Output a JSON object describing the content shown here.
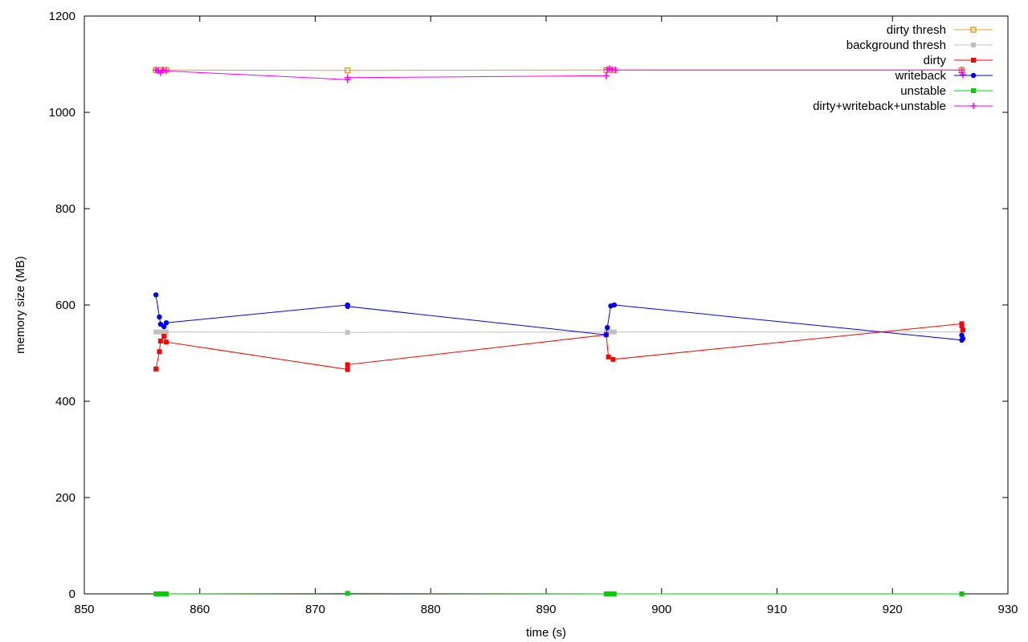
{
  "chart_data": {
    "type": "line",
    "xlabel": "time (s)",
    "ylabel": "memory size (MB)",
    "xlim": [
      850,
      930
    ],
    "ylim": [
      0,
      1200
    ],
    "xticks": [
      "850",
      "860",
      "870",
      "880",
      "890",
      "900",
      "910",
      "920",
      "930"
    ],
    "yticks": [
      "0",
      "200",
      "400",
      "600",
      "800",
      "1000",
      "1200"
    ],
    "grid": false,
    "legend_position": "top-right",
    "series": [
      {
        "name": "dirty thresh",
        "color": "#e9a21f",
        "marker": "square-open",
        "points": [
          [
            856.2,
            1088
          ],
          [
            856.5,
            1088
          ],
          [
            856.9,
            1088
          ],
          [
            857.1,
            1088
          ],
          [
            872.8,
            1087
          ],
          [
            895.2,
            1088
          ],
          [
            895.6,
            1088
          ],
          [
            895.9,
            1088
          ],
          [
            926.0,
            1088
          ]
        ]
      },
      {
        "name": "background thresh",
        "color": "#c0c0c0",
        "marker": "square",
        "points": [
          [
            856.2,
            544
          ],
          [
            856.5,
            544
          ],
          [
            856.9,
            544
          ],
          [
            857.1,
            544
          ],
          [
            872.8,
            543
          ],
          [
            895.2,
            544
          ],
          [
            895.6,
            544
          ],
          [
            895.9,
            544
          ],
          [
            926.0,
            544
          ]
        ]
      },
      {
        "name": "dirty",
        "color": "#ff0000",
        "marker": "square",
        "points": [
          [
            856.2,
            467
          ],
          [
            856.5,
            503
          ],
          [
            856.6,
            525
          ],
          [
            856.9,
            535
          ],
          [
            857.1,
            523
          ],
          [
            872.8,
            466
          ],
          [
            872.8,
            476
          ],
          [
            895.2,
            538
          ],
          [
            895.4,
            492
          ],
          [
            895.8,
            487
          ],
          [
            926.0,
            561
          ],
          [
            926.0,
            557
          ],
          [
            926.1,
            548
          ]
        ]
      },
      {
        "name": "writeback",
        "color": "#0000ff",
        "marker": "dot",
        "points": [
          [
            856.2,
            621
          ],
          [
            856.5,
            575
          ],
          [
            856.6,
            560
          ],
          [
            856.9,
            555
          ],
          [
            857.1,
            563
          ],
          [
            872.8,
            600
          ],
          [
            872.8,
            597
          ],
          [
            895.2,
            538
          ],
          [
            895.3,
            553
          ],
          [
            895.6,
            598
          ],
          [
            895.9,
            600
          ],
          [
            926.0,
            527
          ],
          [
            926.0,
            537
          ],
          [
            926.1,
            530
          ]
        ]
      },
      {
        "name": "unstable",
        "color": "#00d000",
        "marker": "square",
        "points": [
          [
            856.2,
            0
          ],
          [
            856.5,
            0
          ],
          [
            856.9,
            0
          ],
          [
            857.1,
            0
          ],
          [
            872.8,
            1
          ],
          [
            895.2,
            0
          ],
          [
            895.6,
            0
          ],
          [
            895.9,
            0
          ],
          [
            926.0,
            0
          ]
        ]
      },
      {
        "name": "dirty+writeback+unstable",
        "color": "#ff00ff",
        "marker": "plus",
        "points": [
          [
            856.2,
            1088
          ],
          [
            856.4,
            1086
          ],
          [
            856.6,
            1082
          ],
          [
            856.8,
            1088
          ],
          [
            857.1,
            1086
          ],
          [
            872.8,
            1068
          ],
          [
            872.8,
            1072
          ],
          [
            895.2,
            1076
          ],
          [
            895.3,
            1089
          ],
          [
            895.5,
            1091
          ],
          [
            895.7,
            1089
          ],
          [
            896.0,
            1088
          ],
          [
            926.0,
            1088
          ],
          [
            926.0,
            1083
          ],
          [
            926.1,
            1078
          ]
        ]
      }
    ]
  }
}
